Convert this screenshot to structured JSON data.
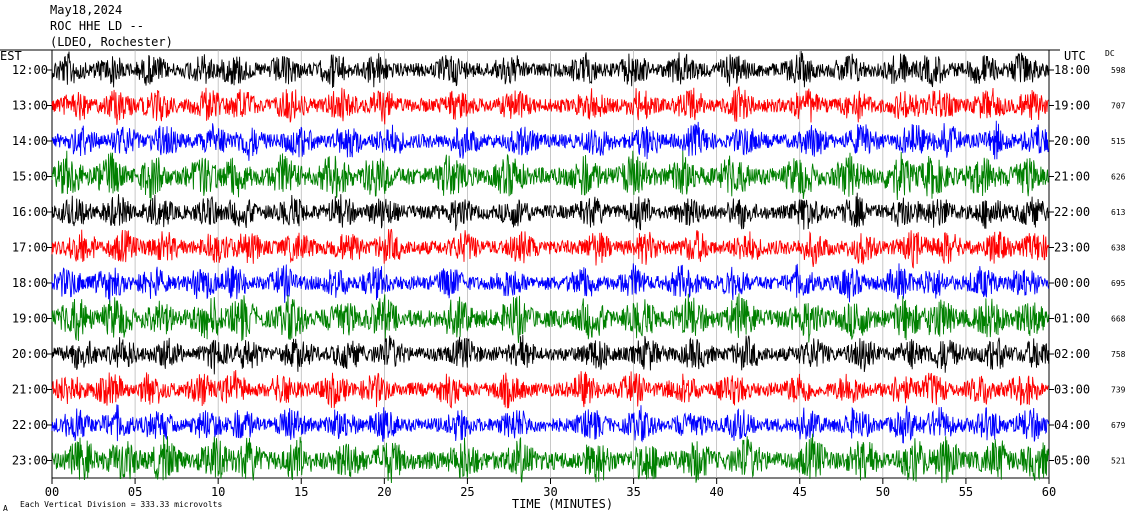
{
  "header": {
    "date": "May18,2024",
    "station": "ROC HHE LD --",
    "location": "(LDEO, Rochester)"
  },
  "footer": {
    "scale_label": "Each Vertical Division = 333.33 microvolts",
    "corner_mark": "A"
  },
  "chart_data": {
    "type": "line",
    "title": "",
    "xlabel": "TIME (MINUTES)",
    "left_axis_label": "EST",
    "right_axis_label": "UTC",
    "dc_label": "DC",
    "xlim": [
      0,
      60
    ],
    "x_ticks": [
      0,
      5,
      10,
      15,
      20,
      25,
      30,
      35,
      40,
      45,
      50,
      55,
      60
    ],
    "x_tick_labels": [
      "00",
      "05",
      "10",
      "15",
      "20",
      "25",
      "30",
      "35",
      "40",
      "45",
      "50",
      "55",
      "60"
    ],
    "grid": true,
    "trace_colors": [
      "#000000",
      "#ff0000",
      "#0000ff",
      "#008000"
    ],
    "rows": [
      {
        "est": "12:00",
        "utc": "18:00",
        "dc": "598"
      },
      {
        "est": "13:00",
        "utc": "19:00",
        "dc": "707"
      },
      {
        "est": "14:00",
        "utc": "20:00",
        "dc": "515"
      },
      {
        "est": "15:00",
        "utc": "21:00",
        "dc": "626"
      },
      {
        "est": "16:00",
        "utc": "22:00",
        "dc": "613"
      },
      {
        "est": "17:00",
        "utc": "23:00",
        "dc": "638"
      },
      {
        "est": "18:00",
        "utc": "00:00",
        "dc": "695"
      },
      {
        "est": "19:00",
        "utc": "01:00",
        "dc": "668"
      },
      {
        "est": "20:00",
        "utc": "02:00",
        "dc": "758"
      },
      {
        "est": "21:00",
        "utc": "03:00",
        "dc": "739"
      },
      {
        "est": "22:00",
        "utc": "04:00",
        "dc": "679"
      },
      {
        "est": "23:00",
        "utc": "05:00",
        "dc": "521"
      }
    ]
  }
}
